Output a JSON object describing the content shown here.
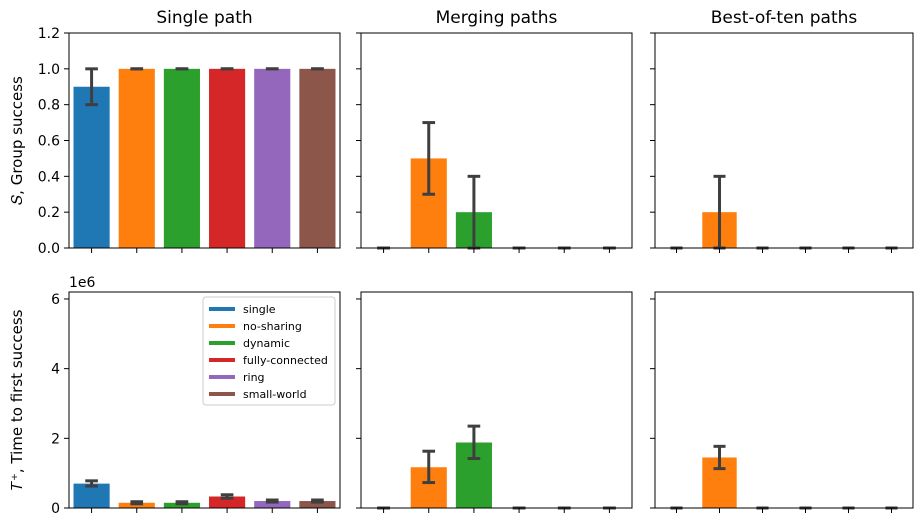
{
  "chart_data": {
    "type": "bar",
    "categories": [
      "single",
      "no-sharing",
      "dynamic",
      "fully-connected",
      "ring",
      "small-world"
    ],
    "colors": [
      "#1f77b4",
      "#ff7f0e",
      "#2ca02c",
      "#d62728",
      "#9467bd",
      "#8c564b"
    ],
    "columns": [
      "Single path",
      "Merging paths",
      "Best-of-ten paths"
    ],
    "rows": [
      {
        "ylabel": "𝑆, Group success",
        "ylim": [
          0,
          1.2
        ],
        "ticks": [
          {
            "v": 0.0,
            "label": "0.0"
          },
          {
            "v": 0.2,
            "label": "0.2"
          },
          {
            "v": 0.4,
            "label": "0.4"
          },
          {
            "v": 0.6,
            "label": "0.6"
          },
          {
            "v": 0.8,
            "label": "0.8"
          },
          {
            "v": 1.0,
            "label": "1.0"
          },
          {
            "v": 1.2,
            "label": "1.2"
          }
        ],
        "offset_label": ""
      },
      {
        "ylabel": "𝑇⁺, Time to first success",
        "ylim": [
          0,
          6.2
        ],
        "ticks": [
          {
            "v": 0,
            "label": "0"
          },
          {
            "v": 2,
            "label": "2"
          },
          {
            "v": 4,
            "label": "4"
          },
          {
            "v": 6,
            "label": "6"
          }
        ],
        "offset_label": "1e6"
      }
    ],
    "panels": [
      {
        "row": 0,
        "col": 0,
        "values": [
          0.9,
          1.0,
          1.0,
          1.0,
          1.0,
          1.0
        ],
        "err_low": [
          0.8,
          1.0,
          1.0,
          1.0,
          1.0,
          1.0
        ],
        "err_high": [
          1.0,
          1.0,
          1.0,
          1.0,
          1.0,
          1.0
        ]
      },
      {
        "row": 0,
        "col": 1,
        "values": [
          0.0,
          0.5,
          0.2,
          0.0,
          0.0,
          0.0
        ],
        "err_low": [
          0.0,
          0.3,
          0.0,
          0.0,
          0.0,
          0.0
        ],
        "err_high": [
          0.0,
          0.7,
          0.4,
          0.0,
          0.0,
          0.0
        ]
      },
      {
        "row": 0,
        "col": 2,
        "values": [
          0.0,
          0.2,
          0.0,
          0.0,
          0.0,
          0.0
        ],
        "err_low": [
          0.0,
          0.0,
          0.0,
          0.0,
          0.0,
          0.0
        ],
        "err_high": [
          0.0,
          0.4,
          0.0,
          0.0,
          0.0,
          0.0
        ]
      },
      {
        "row": 1,
        "col": 0,
        "values": [
          0.7,
          0.15,
          0.15,
          0.33,
          0.2,
          0.2
        ],
        "err_low": [
          0.63,
          0.12,
          0.12,
          0.28,
          0.17,
          0.17
        ],
        "err_high": [
          0.78,
          0.18,
          0.18,
          0.38,
          0.23,
          0.23
        ]
      },
      {
        "row": 1,
        "col": 1,
        "values": [
          0.0,
          1.17,
          1.88,
          0.0,
          0.0,
          0.0
        ],
        "err_low": [
          0.0,
          0.73,
          1.42,
          0.0,
          0.0,
          0.0
        ],
        "err_high": [
          0.0,
          1.63,
          2.35,
          0.0,
          0.0,
          0.0
        ]
      },
      {
        "row": 1,
        "col": 2,
        "values": [
          0.0,
          1.45,
          0.0,
          0.0,
          0.0,
          0.0
        ],
        "err_low": [
          0.0,
          1.13,
          0.0,
          0.0,
          0.0,
          0.0
        ],
        "err_high": [
          0.0,
          1.77,
          0.0,
          0.0,
          0.0,
          0.0
        ]
      }
    ],
    "legend": {
      "panel": {
        "row": 1,
        "col": 0
      },
      "placement": "top-right",
      "entries": [
        "single",
        "no-sharing",
        "dynamic",
        "fully-connected",
        "ring",
        "small-world"
      ]
    },
    "grid": false
  }
}
